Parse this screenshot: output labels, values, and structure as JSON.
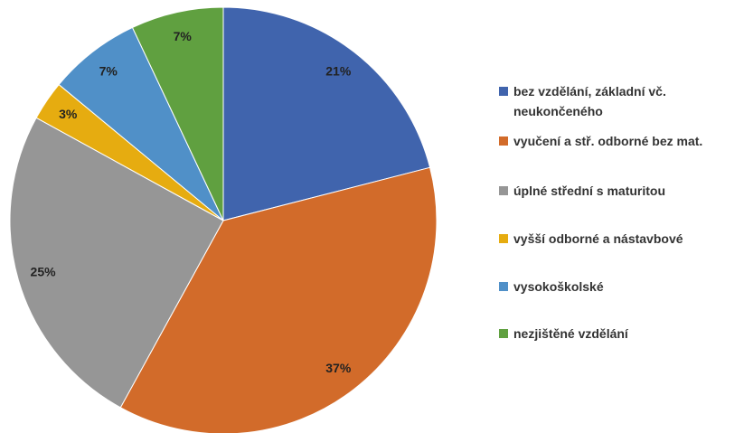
{
  "chart_data": {
    "type": "pie",
    "categories": [
      "bez vzdělání, základní vč. neukončeného",
      "vyučení a stř. odborné bez mat.",
      "úplné střední s maturitou",
      "vyšší odborné a nástavbové",
      "vysokoškolské",
      "nezjištěné vzdělání"
    ],
    "values": [
      21,
      37,
      25,
      3,
      7,
      7
    ],
    "value_labels": [
      "21%",
      "37%",
      "25%",
      "3%",
      "7%",
      "7%"
    ],
    "colors": [
      "#4064ad",
      "#d26b2a",
      "#969696",
      "#e6ac10",
      "#5090c8",
      "#60a040"
    ],
    "legend": "right"
  }
}
